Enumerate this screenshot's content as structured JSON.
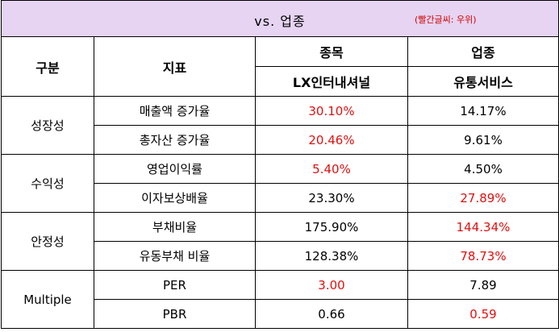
{
  "banner": {
    "title": "vs.  업종",
    "note": "(빨간글씨: 우위)"
  },
  "header": {
    "col_group": "구분",
    "col_indicator": "지표",
    "col_stock": "종목",
    "col_industry": "업종",
    "stock_name": "LX인터내셔널",
    "industry_name": "유통서비스"
  },
  "groups": [
    {
      "name": "성장성",
      "rows": [
        {
          "indicator": "매출액 증가율",
          "stock": "30.10%",
          "industry": "14.17%",
          "winner": "stock"
        },
        {
          "indicator": "총자산 증가율",
          "stock": "20.46%",
          "industry": "9.61%",
          "winner": "stock"
        }
      ]
    },
    {
      "name": "수익성",
      "rows": [
        {
          "indicator": "영업이익률",
          "stock": "5.40%",
          "industry": "4.50%",
          "winner": "stock"
        },
        {
          "indicator": "이자보상배율",
          "stock": "23.30%",
          "industry": "27.89%",
          "winner": "industry"
        }
      ]
    },
    {
      "name": "안정성",
      "rows": [
        {
          "indicator": "부채비율",
          "stock": "175.90%",
          "industry": "144.34%",
          "winner": "industry"
        },
        {
          "indicator": "유동부채 비율",
          "stock": "128.38%",
          "industry": "78.73%",
          "winner": "industry"
        }
      ]
    },
    {
      "name": "Multiple",
      "rows": [
        {
          "indicator": "PER",
          "stock": "3.00",
          "industry": "7.89",
          "winner": "stock"
        },
        {
          "indicator": "PBR",
          "stock": "0.66",
          "industry": "0.59",
          "winner": "industry"
        }
      ]
    }
  ],
  "colors": {
    "banner_bg": "#e6d4f2",
    "advantage_text": "#e01010",
    "border": "#000000"
  }
}
